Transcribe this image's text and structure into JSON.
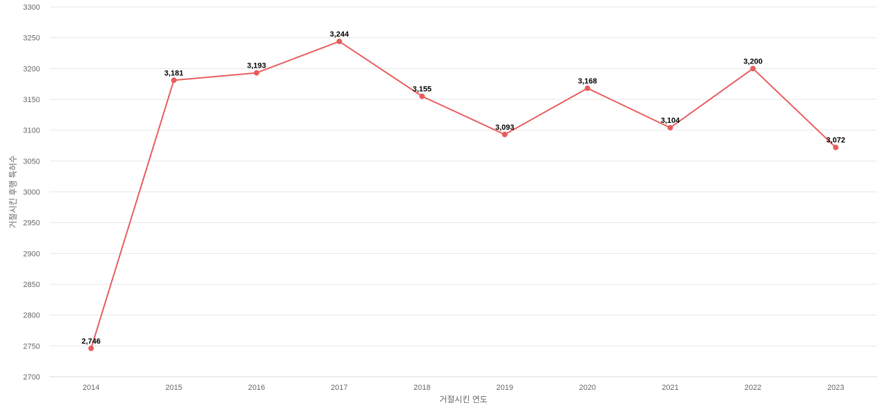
{
  "chart_data": {
    "type": "line",
    "x": [
      "2014",
      "2015",
      "2016",
      "2017",
      "2018",
      "2019",
      "2020",
      "2021",
      "2022",
      "2023"
    ],
    "series": [
      {
        "values": [
          2746,
          3181,
          3193,
          3244,
          3155,
          3093,
          3168,
          3104,
          3200,
          3072
        ],
        "data_labels": [
          "2,746",
          "3,181",
          "3,193",
          "3,244",
          "3,155",
          "3,093",
          "3,168",
          "3,104",
          "3,200",
          "3,072"
        ]
      }
    ],
    "xlabel": "거절시킨 연도",
    "ylabel": "거절시킨 후행 특허수",
    "ylim": [
      2700,
      3300
    ],
    "yticks": [
      "2700",
      "2750",
      "2800",
      "2850",
      "2900",
      "2950",
      "3000",
      "3050",
      "3100",
      "3150",
      "3200",
      "3250",
      "3300"
    ],
    "grid": true,
    "line_color": "#e85c5c"
  }
}
